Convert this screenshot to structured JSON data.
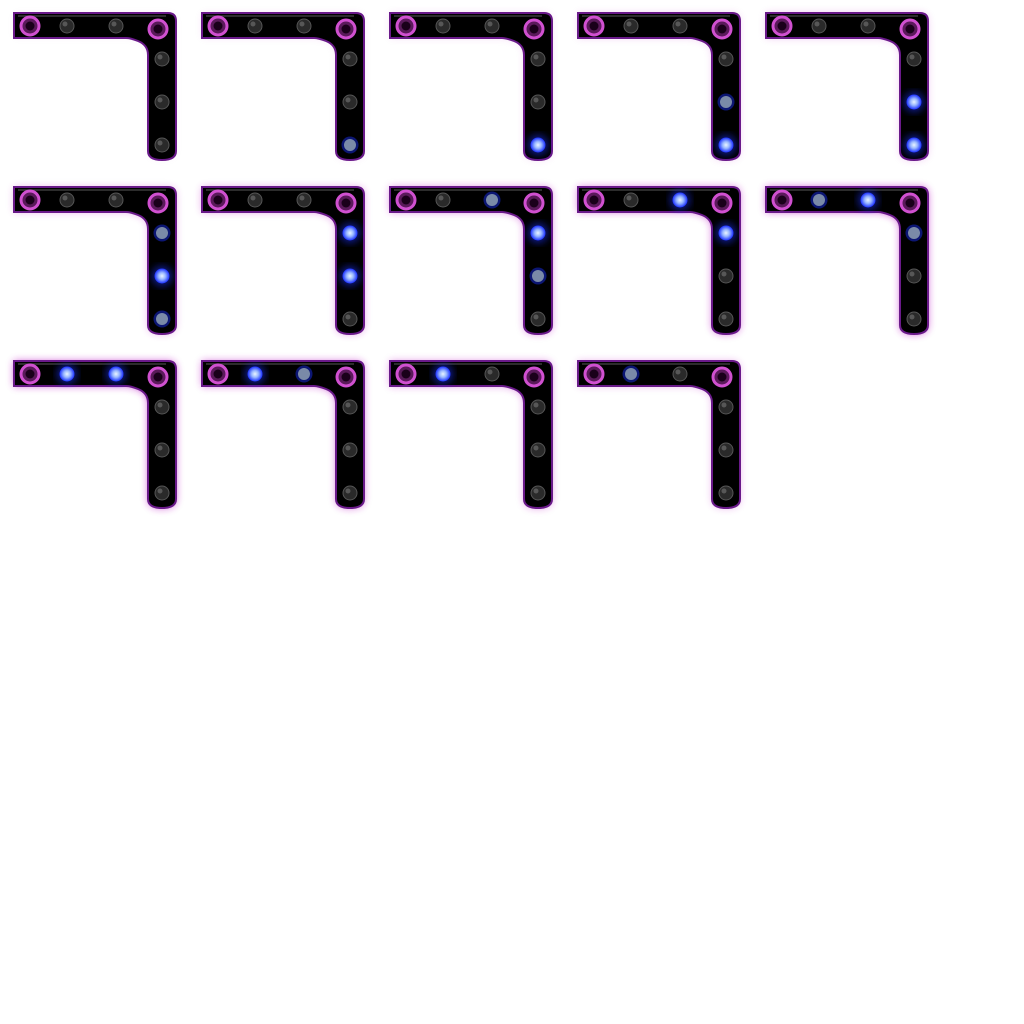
{
  "sprite_sheet": {
    "background": "#ffffff",
    "colors": {
      "bar_fill": "#000000",
      "bar_outline": "#6a1a8a",
      "glow": "#c020c8",
      "end_ring": "#d050d0",
      "hole_dim": "#2a2a2a",
      "led_blue": "#1a30ff",
      "led_core": "#e8f4ff",
      "led_dim": "#7a8aa8"
    },
    "frames": [
      {
        "glow": 0.05,
        "leds": [
          "off",
          "off",
          "off",
          "off",
          "off"
        ]
      },
      {
        "glow": 0.1,
        "leds": [
          "off",
          "off",
          "off",
          "off",
          "dim"
        ]
      },
      {
        "glow": 0.15,
        "leds": [
          "off",
          "off",
          "off",
          "off",
          "on"
        ]
      },
      {
        "glow": 0.2,
        "leds": [
          "off",
          "off",
          "off",
          "dim",
          "on"
        ]
      },
      {
        "glow": 0.25,
        "leds": [
          "off",
          "off",
          "off",
          "on",
          "on"
        ]
      },
      {
        "glow": 0.35,
        "leds": [
          "off",
          "off",
          "dim",
          "on",
          "dim"
        ]
      },
      {
        "glow": 0.45,
        "leds": [
          "off",
          "off",
          "on",
          "on",
          "off"
        ]
      },
      {
        "glow": 0.55,
        "leds": [
          "off",
          "dim",
          "on",
          "dim",
          "off"
        ]
      },
      {
        "glow": 0.65,
        "leds": [
          "off",
          "on",
          "on",
          "off",
          "off"
        ]
      },
      {
        "glow": 0.75,
        "leds": [
          "dim",
          "on",
          "dim",
          "off",
          "off"
        ]
      },
      {
        "glow": 0.75,
        "leds": [
          "on",
          "on",
          "off",
          "off",
          "off"
        ]
      },
      {
        "glow": 0.65,
        "leds": [
          "on",
          "dim",
          "off",
          "off",
          "off"
        ]
      },
      {
        "glow": 0.5,
        "leds": [
          "on",
          "off",
          "off",
          "off",
          "off"
        ]
      },
      {
        "glow": 0.35,
        "leds": [
          "dim",
          "off",
          "off",
          "off",
          "off"
        ]
      }
    ]
  }
}
